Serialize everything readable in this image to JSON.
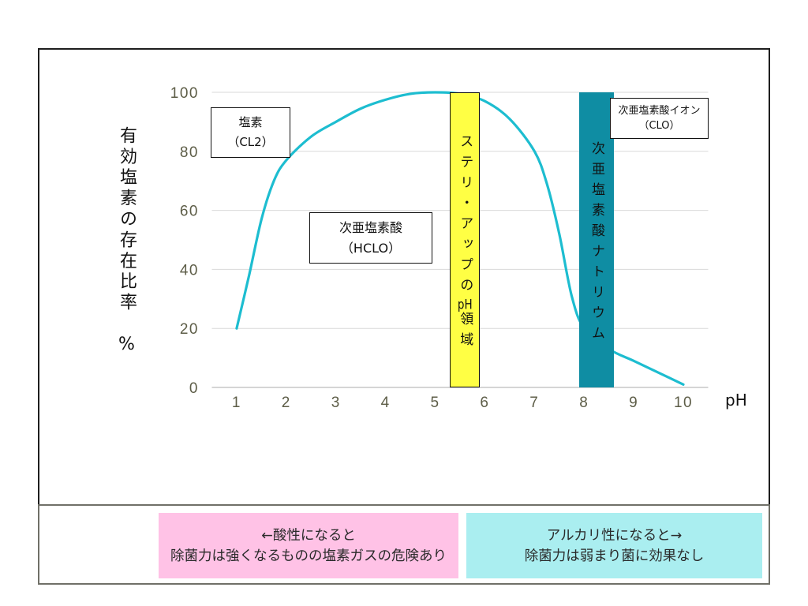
{
  "chart_data": {
    "type": "line",
    "xlabel": "pH",
    "ylabel": "有効塩素の存在比率　%",
    "xlim": [
      0.5,
      10.5
    ],
    "ylim": [
      0,
      100
    ],
    "xticks": [
      1,
      2,
      3,
      4,
      5,
      6,
      7,
      8,
      9,
      10
    ],
    "yticks": [
      0,
      20,
      40,
      60,
      80,
      100
    ],
    "grid": true,
    "series": [
      {
        "color": "#1DBDD0",
        "x": [
          1,
          1.25,
          1.5,
          1.75,
          2,
          2.5,
          3,
          3.5,
          4,
          4.5,
          5,
          5.5,
          6,
          6.5,
          7,
          7.25,
          7.5,
          7.75,
          8,
          8.5,
          9,
          9.5,
          10
        ],
        "y": [
          20,
          38,
          57,
          70,
          77,
          85,
          90,
          94.5,
          97.5,
          99.5,
          100,
          99.5,
          97,
          91,
          80,
          69,
          52,
          31,
          20,
          13,
          9,
          5,
          1
        ]
      }
    ],
    "bands": [
      {
        "label": "ステリ・アップのpH領域",
        "x_range": [
          5.3,
          5.9
        ],
        "color": "#FFFF44"
      },
      {
        "label": "次亜塩素酸ナトリウム",
        "x_range": [
          7.9,
          8.6
        ],
        "color": "#0F8DA3"
      }
    ],
    "annotations": [
      {
        "lines": [
          "塩素",
          "（CL2）"
        ]
      },
      {
        "lines": [
          "次亜塩素酸",
          "（HCLO）"
        ]
      },
      {
        "lines": [
          "次亜塩素酸イオン",
          "（CLO）"
        ]
      }
    ]
  },
  "notes": {
    "acidic": {
      "lines": [
        "←酸性になると",
        "除菌力は強くなるものの塩素ガスの危険あり"
      ],
      "color": "#FFC2E6"
    },
    "alkaline": {
      "lines": [
        "アルカリ性になると→",
        "除菌力は弱まり菌に効果なし"
      ],
      "color": "#AAEEF0"
    }
  }
}
